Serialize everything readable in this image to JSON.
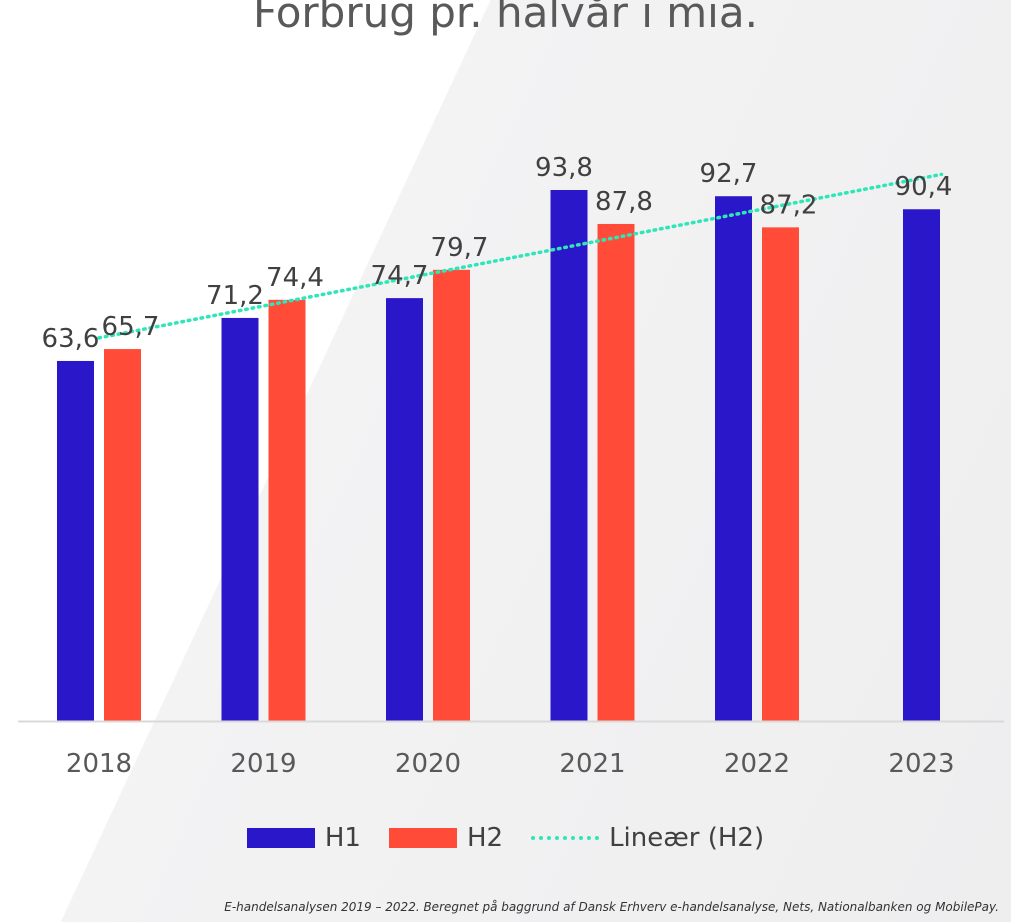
{
  "chart_data": {
    "type": "bar",
    "title": "Forbrug pr. halvår i mia.",
    "categories": [
      "2018",
      "2019",
      "2020",
      "2021",
      "2022",
      "2023"
    ],
    "series": [
      {
        "name": "H1",
        "color": "#2a17c9",
        "values": [
          63.6,
          71.2,
          74.7,
          93.8,
          92.7,
          90.4
        ],
        "labels": [
          "63,6",
          "71,2",
          "74,7",
          "93,8",
          "92,7",
          "90,4"
        ]
      },
      {
        "name": "H2",
        "color": "#ff4b37",
        "values": [
          65.7,
          74.4,
          79.7,
          87.8,
          87.2,
          null
        ],
        "labels": [
          "65,7",
          "74,4",
          "79,7",
          "87,8",
          "87,2",
          ""
        ]
      }
    ],
    "trendline": {
      "name": "Lineær (H2)",
      "color": "#2ee6b8",
      "style": "dotted",
      "of_series": "H2"
    },
    "ylim": [
      0,
      95
    ],
    "grid": false,
    "legend_position": "bottom"
  },
  "footnote": "E-handelsanalysen 2019 – 2022. Beregnet på baggrund af Dansk Erhverv e-handelsanalyse, Nets, Nationalbanken og MobilePay."
}
